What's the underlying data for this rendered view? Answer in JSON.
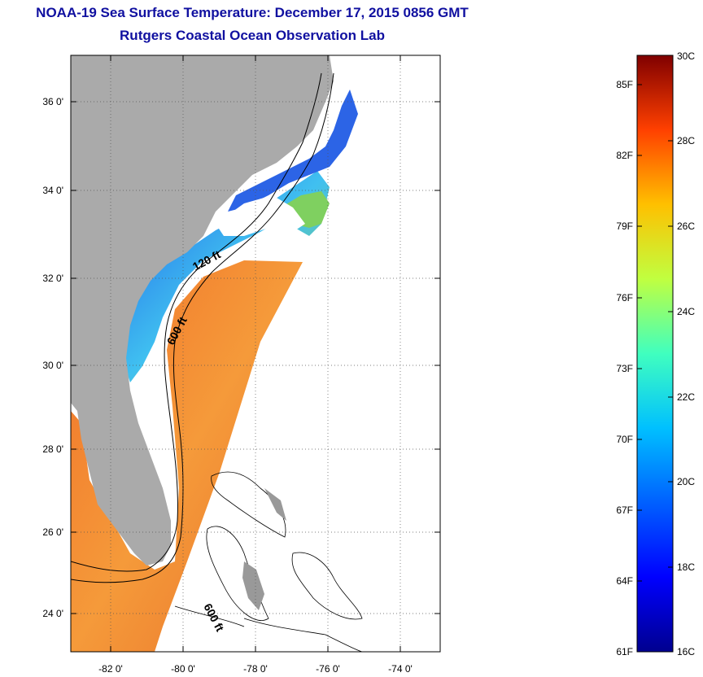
{
  "title": {
    "line1": "NOAA-19 Sea Surface Temperature:  December 17, 2015 0856 GMT",
    "line2": "Rutgers Coastal Ocean Observation Lab"
  },
  "map": {
    "lat_labels": [
      "36 0'",
      "34 0'",
      "32 0'",
      "30 0'",
      "28 0'",
      "26 0'",
      "24 0'"
    ],
    "lon_labels": [
      "-82 0'",
      "-80 0'",
      "-78 0'",
      "-76 0'",
      "-74 0'"
    ],
    "depth_labels": [
      "120 ft",
      "600 ft",
      "600 ft"
    ]
  },
  "colorbar": {
    "fahrenheit_labels": [
      "85F",
      "82F",
      "79F",
      "76F",
      "73F",
      "70F",
      "67F",
      "64F",
      "61F"
    ],
    "celsius_labels": [
      "30C",
      "28C",
      "26C",
      "24C",
      "22C",
      "20C",
      "18C",
      "16C"
    ]
  },
  "colors": {
    "title": "#1010a0",
    "land": "#aaaaaa",
    "warm": "#f08030",
    "cool": "#30b0f0",
    "cold": "#2050e0"
  }
}
